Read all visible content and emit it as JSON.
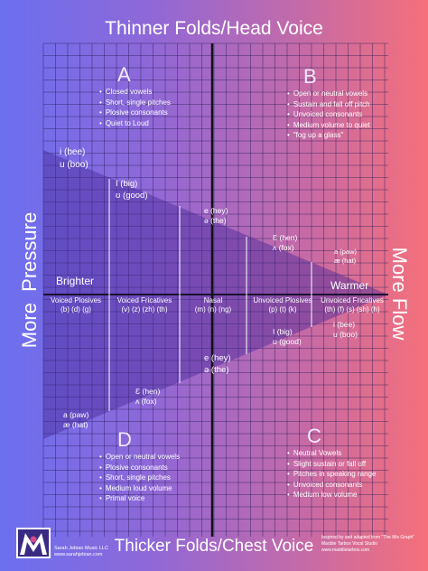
{
  "axes": {
    "top": "Thinner Folds/Head Voice",
    "bottom": "Thicker Folds/Chest Voice",
    "left": "More  Pressure",
    "right": "More Flow",
    "left_end": "Brighter",
    "right_end": "Warmer"
  },
  "quadrants": {
    "A": {
      "letter": "A",
      "items": [
        "Closed vowels",
        "Short, single pitches",
        "Plosive consonants",
        "Quiet to Loud"
      ]
    },
    "B": {
      "letter": "B",
      "items": [
        "Open or neutral vowels",
        "Sustain and fall off pitch",
        "Unvoiced consonants",
        "Medium volume to quiet",
        "\"fog up a glass\""
      ]
    },
    "C": {
      "letter": "C",
      "items": [
        "Neutral Vowels",
        "Slight sustain or fall off",
        "Pitches in speaking range",
        "Unvoiced consonants",
        "Medium low volume"
      ]
    },
    "D": {
      "letter": "D",
      "items": [
        "Open or neutral vowels",
        "Plosive consonants",
        "Short, single pitches",
        "Medium loud volume",
        "Primal voice"
      ]
    }
  },
  "consonants": [
    {
      "name": "Voiced Plosives",
      "symbols": "(b) (d) (g)"
    },
    {
      "name": "Voiced Fricatives",
      "symbols": "(v) (z) (zh) (th)"
    },
    {
      "name": "Nasal",
      "symbols": "(m) (n) (ng)"
    },
    {
      "name": "Unvoiced Plosives",
      "symbols": "(p) (t) (k)"
    },
    {
      "name": "Unvoiced Fricatives",
      "symbols": "(th) (f) (s) (sh) (h)"
    }
  ],
  "vowels_top": [
    {
      "a": "i (bee)",
      "b": "u (boo)"
    },
    {
      "a": "I (big)",
      "b": "ʊ (good)"
    },
    {
      "a": "e (hey)",
      "b": "ə (the)"
    },
    {
      "a": "Ɛ (hen)",
      "b": "ʌ (fox)"
    },
    {
      "a": "a (paw)",
      "b": "æ (hat)"
    }
  ],
  "vowels_bottom": [
    {
      "a": "a (paw)",
      "b": "æ (hat)"
    },
    {
      "a": "Ɛ (hen)",
      "b": "ʌ (fox)"
    },
    {
      "a": "e (hey)",
      "b": "ə (the)"
    },
    {
      "a": "I (big)",
      "b": "ʊ (good)"
    },
    {
      "a": "i (bee)",
      "b": "u (boo)"
    }
  ],
  "footer": {
    "company": "Sarah Jebian Music LLC",
    "website": "www.sarahjebian.com",
    "credit1": "Inspired by and adapted from \"The Mix Graph\"",
    "credit2": "Maddie Tarbox Vocal Studio",
    "credit3": "www.maddietarbox.com"
  },
  "colors": {
    "left": "#6b6ff0",
    "right": "#f5707a",
    "triangle": "#5b3fae"
  }
}
